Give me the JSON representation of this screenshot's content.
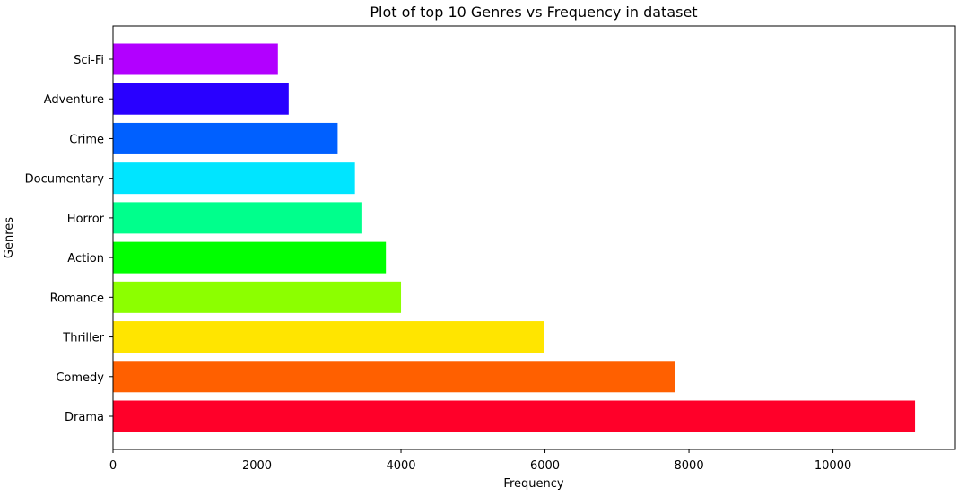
{
  "chart_data": {
    "type": "bar",
    "orientation": "horizontal",
    "title": "Plot of top 10 Genres vs Frequency in dataset",
    "xlabel": "Frequency",
    "ylabel": "Genres",
    "categories": [
      "Drama",
      "Comedy",
      "Thriller",
      "Romance",
      "Action",
      "Horror",
      "Documentary",
      "Crime",
      "Adventure",
      "Sci-Fi"
    ],
    "values": [
      11140,
      7810,
      5990,
      4000,
      3790,
      3450,
      3360,
      3120,
      2440,
      2290
    ],
    "colors": [
      "#ff0029",
      "#ff6000",
      "#ffe500",
      "#8cff00",
      "#00ff00",
      "#00ff8c",
      "#00e5ff",
      "#0060ff",
      "#2900ff",
      "#b200ff"
    ],
    "xlim": [
      0,
      11700
    ],
    "xticks": [
      0,
      2000,
      4000,
      6000,
      8000,
      10000
    ],
    "grid": false,
    "legend": "none"
  }
}
